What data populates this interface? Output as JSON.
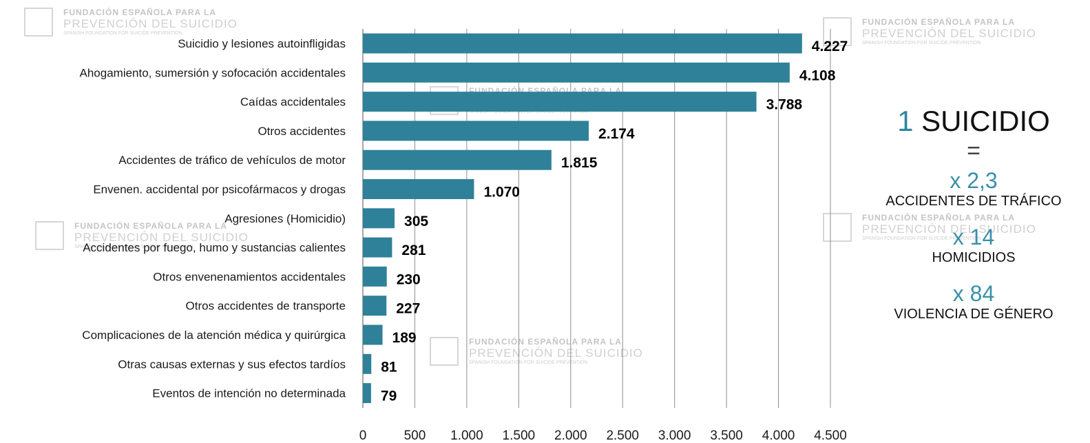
{
  "chart_data": {
    "type": "bar",
    "orientation": "horizontal",
    "categories": [
      "Suicidio y lesiones autoinfligidas",
      "Ahogamiento, sumersión y sofocación accidentales",
      "Caídas accidentales",
      "Otros accidentes",
      "Accidentes de tráfico de vehículos de motor",
      "Envenen. accidental por psicofármacos y drogas",
      "Agresiones (Homicidio)",
      "Accidentes por fuego, humo y sustancias calientes",
      "Otros envenenamientos  accidentales",
      "Otros accidentes de transporte",
      "Complicaciones de la atención médica y quirúrgica",
      "Otras causas externas y sus efectos tardíos",
      "Eventos de intención no determinada"
    ],
    "values": [
      4227,
      4108,
      3788,
      2174,
      1815,
      1070,
      305,
      281,
      230,
      227,
      189,
      81,
      79
    ],
    "value_labels": [
      "4.227",
      "4.108",
      "3.788",
      "2.174",
      "1.815",
      "1.070",
      "305",
      "281",
      "230",
      "227",
      "189",
      "81",
      "79"
    ],
    "xlim": [
      0,
      4500
    ],
    "xticks": [
      "0",
      "500",
      "1.000",
      "1.500",
      "2.000",
      "2.500",
      "3.000",
      "3.500",
      "4.000",
      "4.500"
    ],
    "grid": true,
    "bar_color": "#2e8199"
  },
  "watermark": {
    "line1": "FUNDACIÓN ESPAÑOLA PARA LA",
    "line2": "PREVENCIÓN DEL SUICIDIO",
    "line3": "SPANISH FOUNDATION FOR SUICIDE PREVENTION"
  },
  "stats": {
    "headline_num": "1",
    "headline_word": "SUICIDIO",
    "equals": "=",
    "items": [
      {
        "multiplier": "x 2,3",
        "label": "ACCIDENTES DE TRÁFICO"
      },
      {
        "multiplier": "x 14",
        "label": "HOMICIDIOS"
      },
      {
        "multiplier": "x 84",
        "label": "VIOLENCIA DE GÉNERO"
      }
    ]
  },
  "colors": {
    "accent": "#2e86a0",
    "bar": "#2e8199",
    "grid": "#8c8c8c"
  }
}
